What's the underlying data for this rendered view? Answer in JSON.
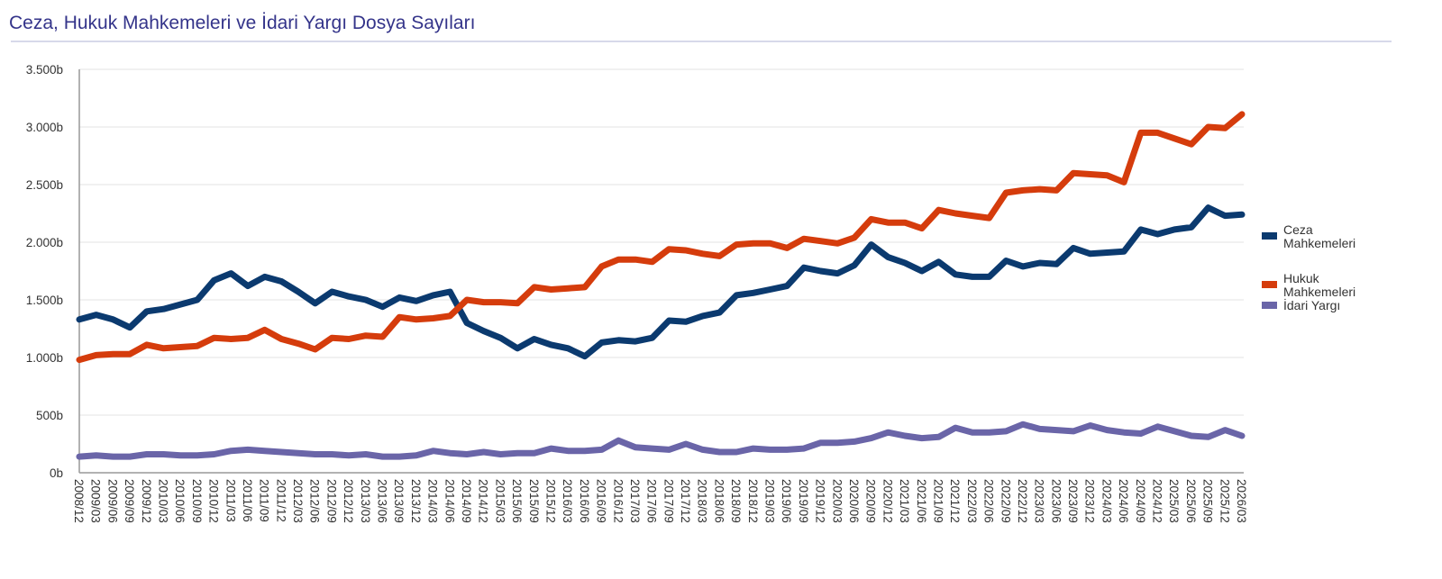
{
  "chart_data": {
    "type": "line",
    "title": "Ceza, Hukuk Mahkemeleri ve İdari Yargı Dosya Sayıları",
    "xlabel": "",
    "ylabel": "",
    "ylim": [
      0,
      3500
    ],
    "yticks": [
      0,
      500,
      1000,
      1500,
      2000,
      2500,
      3000,
      3500
    ],
    "ytick_labels": [
      "0b",
      "500b",
      "1.000b",
      "1.500b",
      "2.000b",
      "2.500b",
      "3.000b",
      "3.500b"
    ],
    "grid": true,
    "legend_position": "right",
    "x": [
      "2008/12",
      "2009/03",
      "2009/06",
      "2009/09",
      "2009/12",
      "2010/03",
      "2010/06",
      "2010/09",
      "2010/12",
      "2011/03",
      "2011/06",
      "2011/09",
      "2011/12",
      "2012/03",
      "2012/06",
      "2012/09",
      "2012/12",
      "2013/03",
      "2013/06",
      "2013/09",
      "2013/12",
      "2014/03",
      "2014/06",
      "2014/09",
      "2014/12",
      "2015/03",
      "2015/06",
      "2015/09",
      "2015/12",
      "2016/03",
      "2016/06",
      "2016/09",
      "2016/12",
      "2017/03",
      "2017/06",
      "2017/09",
      "2017/12",
      "2018/03",
      "2018/06",
      "2018/09",
      "2018/12",
      "2019/03",
      "2019/06",
      "2019/09",
      "2019/12",
      "2020/03",
      "2020/06",
      "2020/09",
      "2020/12",
      "2021/03",
      "2021/06",
      "2021/09",
      "2021/12",
      "2022/03",
      "2022/06",
      "2022/09",
      "2022/12",
      "2023/03",
      "2023/06",
      "2023/09",
      "2023/12",
      "2024/03",
      "2024/06",
      "2024/09",
      "2024/12",
      "2025/03",
      "2025/06",
      "2025/09",
      "2025/12",
      "2026/03"
    ],
    "series": [
      {
        "name": "Ceza Mahkemeleri",
        "legend_lines": [
          "Ceza",
          "Mahkemeleri"
        ],
        "color": "#0b3a6f",
        "values": [
          1330,
          1370,
          1330,
          1260,
          1400,
          1420,
          1460,
          1500,
          1670,
          1730,
          1620,
          1700,
          1660,
          1570,
          1470,
          1570,
          1530,
          1500,
          1440,
          1520,
          1490,
          1540,
          1570,
          1300,
          1230,
          1170,
          1080,
          1160,
          1110,
          1080,
          1010,
          1130,
          1150,
          1140,
          1170,
          1320,
          1310,
          1360,
          1390,
          1540,
          1560,
          1590,
          1620,
          1780,
          1750,
          1730,
          1800,
          1980,
          1870,
          1820,
          1750,
          1830,
          1720,
          1700,
          1700,
          1840,
          1790,
          1820,
          1810,
          1950,
          1900,
          1910,
          1920,
          2110,
          2070,
          2110,
          2130,
          2300,
          2230,
          2240
        ]
      },
      {
        "name": "Hukuk Mahkemeleri",
        "legend_lines": [
          "Hukuk",
          "Mahkemeleri"
        ],
        "color": "#d53c0c",
        "values": [
          980,
          1020,
          1030,
          1030,
          1110,
          1080,
          1090,
          1100,
          1170,
          1160,
          1170,
          1240,
          1160,
          1120,
          1070,
          1170,
          1160,
          1190,
          1180,
          1350,
          1330,
          1340,
          1360,
          1500,
          1480,
          1480,
          1470,
          1610,
          1590,
          1600,
          1610,
          1790,
          1850,
          1850,
          1830,
          1940,
          1930,
          1900,
          1880,
          1980,
          1990,
          1990,
          1950,
          2030,
          2010,
          1990,
          2040,
          2200,
          2170,
          2170,
          2120,
          2280,
          2250,
          2230,
          2210,
          2430,
          2450,
          2460,
          2450,
          2600,
          2590,
          2580,
          2520,
          2950,
          2950,
          2900,
          2850,
          3000,
          2990,
          3110
        ]
      },
      {
        "name": "İdari Yargı",
        "legend_lines": [
          "İdari Yargı"
        ],
        "color": "#6a65a8",
        "values": [
          140,
          150,
          140,
          140,
          160,
          160,
          150,
          150,
          160,
          190,
          200,
          190,
          180,
          170,
          160,
          160,
          150,
          160,
          140,
          140,
          150,
          190,
          170,
          160,
          180,
          160,
          170,
          170,
          210,
          190,
          190,
          200,
          280,
          220,
          210,
          200,
          250,
          200,
          180,
          180,
          210,
          200,
          200,
          210,
          260,
          260,
          270,
          300,
          350,
          320,
          300,
          310,
          390,
          350,
          350,
          360,
          420,
          380,
          370,
          360,
          410,
          370,
          350,
          340,
          400,
          360,
          320,
          310,
          370,
          320
        ]
      }
    ]
  }
}
